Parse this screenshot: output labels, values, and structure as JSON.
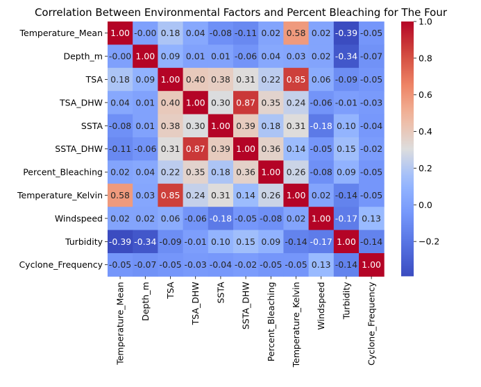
{
  "chart_data": {
    "type": "heatmap",
    "title": "Correlation Between Environmental Factors and Percent Bleaching for The Four",
    "xlabel": "",
    "ylabel": "",
    "colormap": "coolwarm",
    "vmin": -0.39,
    "vmax": 1.0,
    "labels": [
      "Temperature_Mean",
      "Depth_m",
      "TSA",
      "TSA_DHW",
      "SSTA",
      "SSTA_DHW",
      "Percent_Bleaching",
      "Temperature_Kelvin",
      "Windspeed",
      "Turbidity",
      "Cyclone_Frequency"
    ],
    "matrix": [
      [
        1.0,
        -0.0,
        0.18,
        0.04,
        -0.08,
        -0.11,
        0.02,
        0.58,
        0.02,
        -0.39,
        -0.05
      ],
      [
        -0.0,
        1.0,
        0.09,
        0.01,
        0.01,
        -0.06,
        0.04,
        0.03,
        0.02,
        -0.34,
        -0.07
      ],
      [
        0.18,
        0.09,
        1.0,
        0.4,
        0.38,
        0.31,
        0.22,
        0.85,
        0.06,
        -0.09,
        -0.05
      ],
      [
        0.04,
        0.01,
        0.4,
        1.0,
        0.3,
        0.87,
        0.35,
        0.24,
        -0.06,
        -0.01,
        -0.03
      ],
      [
        -0.08,
        0.01,
        0.38,
        0.3,
        1.0,
        0.39,
        0.18,
        0.31,
        -0.18,
        0.1,
        -0.04
      ],
      [
        -0.11,
        -0.06,
        0.31,
        0.87,
        0.39,
        1.0,
        0.36,
        0.14,
        -0.05,
        0.15,
        -0.02
      ],
      [
        0.02,
        0.04,
        0.22,
        0.35,
        0.18,
        0.36,
        1.0,
        0.26,
        -0.08,
        0.09,
        -0.05
      ],
      [
        0.58,
        0.03,
        0.85,
        0.24,
        0.31,
        0.14,
        0.26,
        1.0,
        0.02,
        -0.14,
        -0.05
      ],
      [
        0.02,
        0.02,
        0.06,
        -0.06,
        -0.18,
        -0.05,
        -0.08,
        0.02,
        1.0,
        -0.17,
        0.13
      ],
      [
        -0.39,
        -0.34,
        -0.09,
        -0.01,
        0.1,
        0.15,
        0.09,
        -0.14,
        -0.17,
        1.0,
        -0.14
      ],
      [
        -0.05,
        -0.07,
        -0.05,
        -0.03,
        -0.04,
        -0.02,
        -0.05,
        -0.05,
        0.13,
        -0.14,
        1.0
      ]
    ],
    "colorbar_ticks": [
      "1.0",
      "0.8",
      "0.6",
      "0.4",
      "0.2",
      "0.0",
      "−0.2"
    ],
    "colorbar_values": [
      1.0,
      0.8,
      0.6,
      0.4,
      0.2,
      0.0,
      -0.2
    ]
  }
}
